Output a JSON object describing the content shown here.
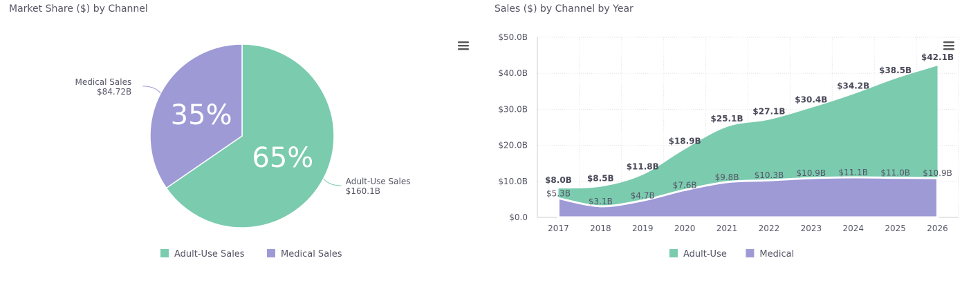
{
  "charts": [
    {
      "type": "pie",
      "title": "Market Share ($) by Channel",
      "slices": [
        {
          "name": "Adult-Use Sales",
          "value": 160.1,
          "value_label": "$160.1B",
          "percent_label": "65%",
          "color": "#7bcbaf"
        },
        {
          "name": "Medical Sales",
          "value": 84.72,
          "value_label": "$84.72B",
          "percent_label": "35%",
          "color": "#9e9ad6"
        }
      ],
      "legend": [
        "Adult-Use Sales",
        "Medical Sales"
      ],
      "legend_position": "bottom-center"
    },
    {
      "type": "area",
      "title": "Sales ($) by Channel by Year",
      "categories": [
        "2017",
        "2018",
        "2019",
        "2020",
        "2021",
        "2022",
        "2023",
        "2024",
        "2025",
        "2026"
      ],
      "series": [
        {
          "name": "Adult-Use",
          "color": "#7bcbaf",
          "total_values": [
            8.0,
            8.5,
            11.8,
            18.9,
            25.1,
            27.1,
            30.4,
            34.2,
            38.5,
            42.1
          ],
          "total_labels": [
            "$8.0B",
            "$8.5B",
            "$11.8B",
            "$18.9B",
            "$25.1B",
            "$27.1B",
            "$30.4B",
            "$34.2B",
            "$38.5B",
            "$42.1B"
          ]
        },
        {
          "name": "Medical",
          "color": "#9e9ad6",
          "values": [
            5.3,
            3.1,
            4.7,
            7.6,
            9.8,
            10.3,
            10.9,
            11.1,
            11.0,
            10.9
          ],
          "labels": [
            "$5.3B",
            "$3.1B",
            "$4.7B",
            "$7.6B",
            "$9.8B",
            "$10.3B",
            "$10.9B",
            "$11.1B",
            "$11.0B",
            "$10.9B"
          ]
        }
      ],
      "y_ticks": [
        0,
        10,
        20,
        30,
        40,
        50
      ],
      "y_tick_labels": [
        "$0.0",
        "$10.0B",
        "$20.0B",
        "$30.0B",
        "$40.0B",
        "$50.0B"
      ],
      "ylim": [
        0,
        50
      ],
      "grid": true,
      "legend": [
        "Adult-Use",
        "Medical"
      ],
      "legend_position": "bottom-center"
    }
  ]
}
